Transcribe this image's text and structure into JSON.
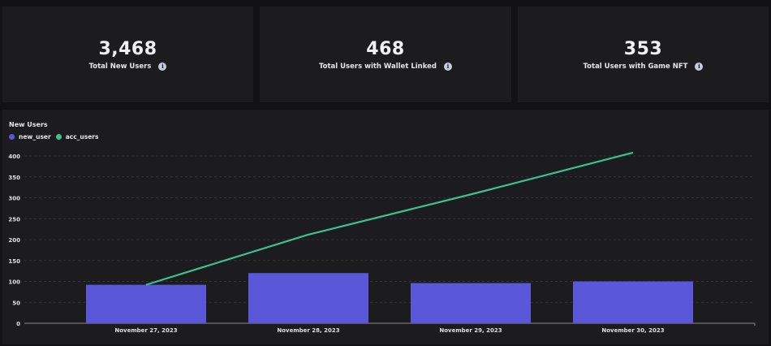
{
  "kpis": [
    {
      "value": "3,468",
      "label": "Total New Users",
      "icon": "info-icon"
    },
    {
      "value": "468",
      "label": "Total Users with Wallet Linked",
      "icon": "info-icon"
    },
    {
      "value": "353",
      "label": "Total Users with Game NFT",
      "icon": "info-icon"
    }
  ],
  "chart": {
    "title": "New Users",
    "legend": [
      {
        "label": "new_user",
        "color": "#5a57d9"
      },
      {
        "label": "acc_users",
        "color": "#3ec08f"
      }
    ]
  },
  "chart_data": {
    "type": "bar",
    "title": "New Users",
    "categories": [
      "November 27, 2023",
      "November 28, 2023",
      "November 29, 2023",
      "November 30, 2023"
    ],
    "series": [
      {
        "name": "new_user",
        "type": "bar",
        "color": "#5a57d9",
        "values": [
          92,
          120,
          96,
          100
        ]
      },
      {
        "name": "acc_users",
        "type": "line",
        "color": "#3ec08f",
        "values": [
          92,
          212,
          308,
          408
        ]
      }
    ],
    "yticks": [
      0,
      50,
      100,
      150,
      200,
      250,
      300,
      350,
      400
    ],
    "ylim": [
      0,
      400
    ],
    "grid": true,
    "legend_position": "top-left",
    "xlabel": "",
    "ylabel": ""
  }
}
